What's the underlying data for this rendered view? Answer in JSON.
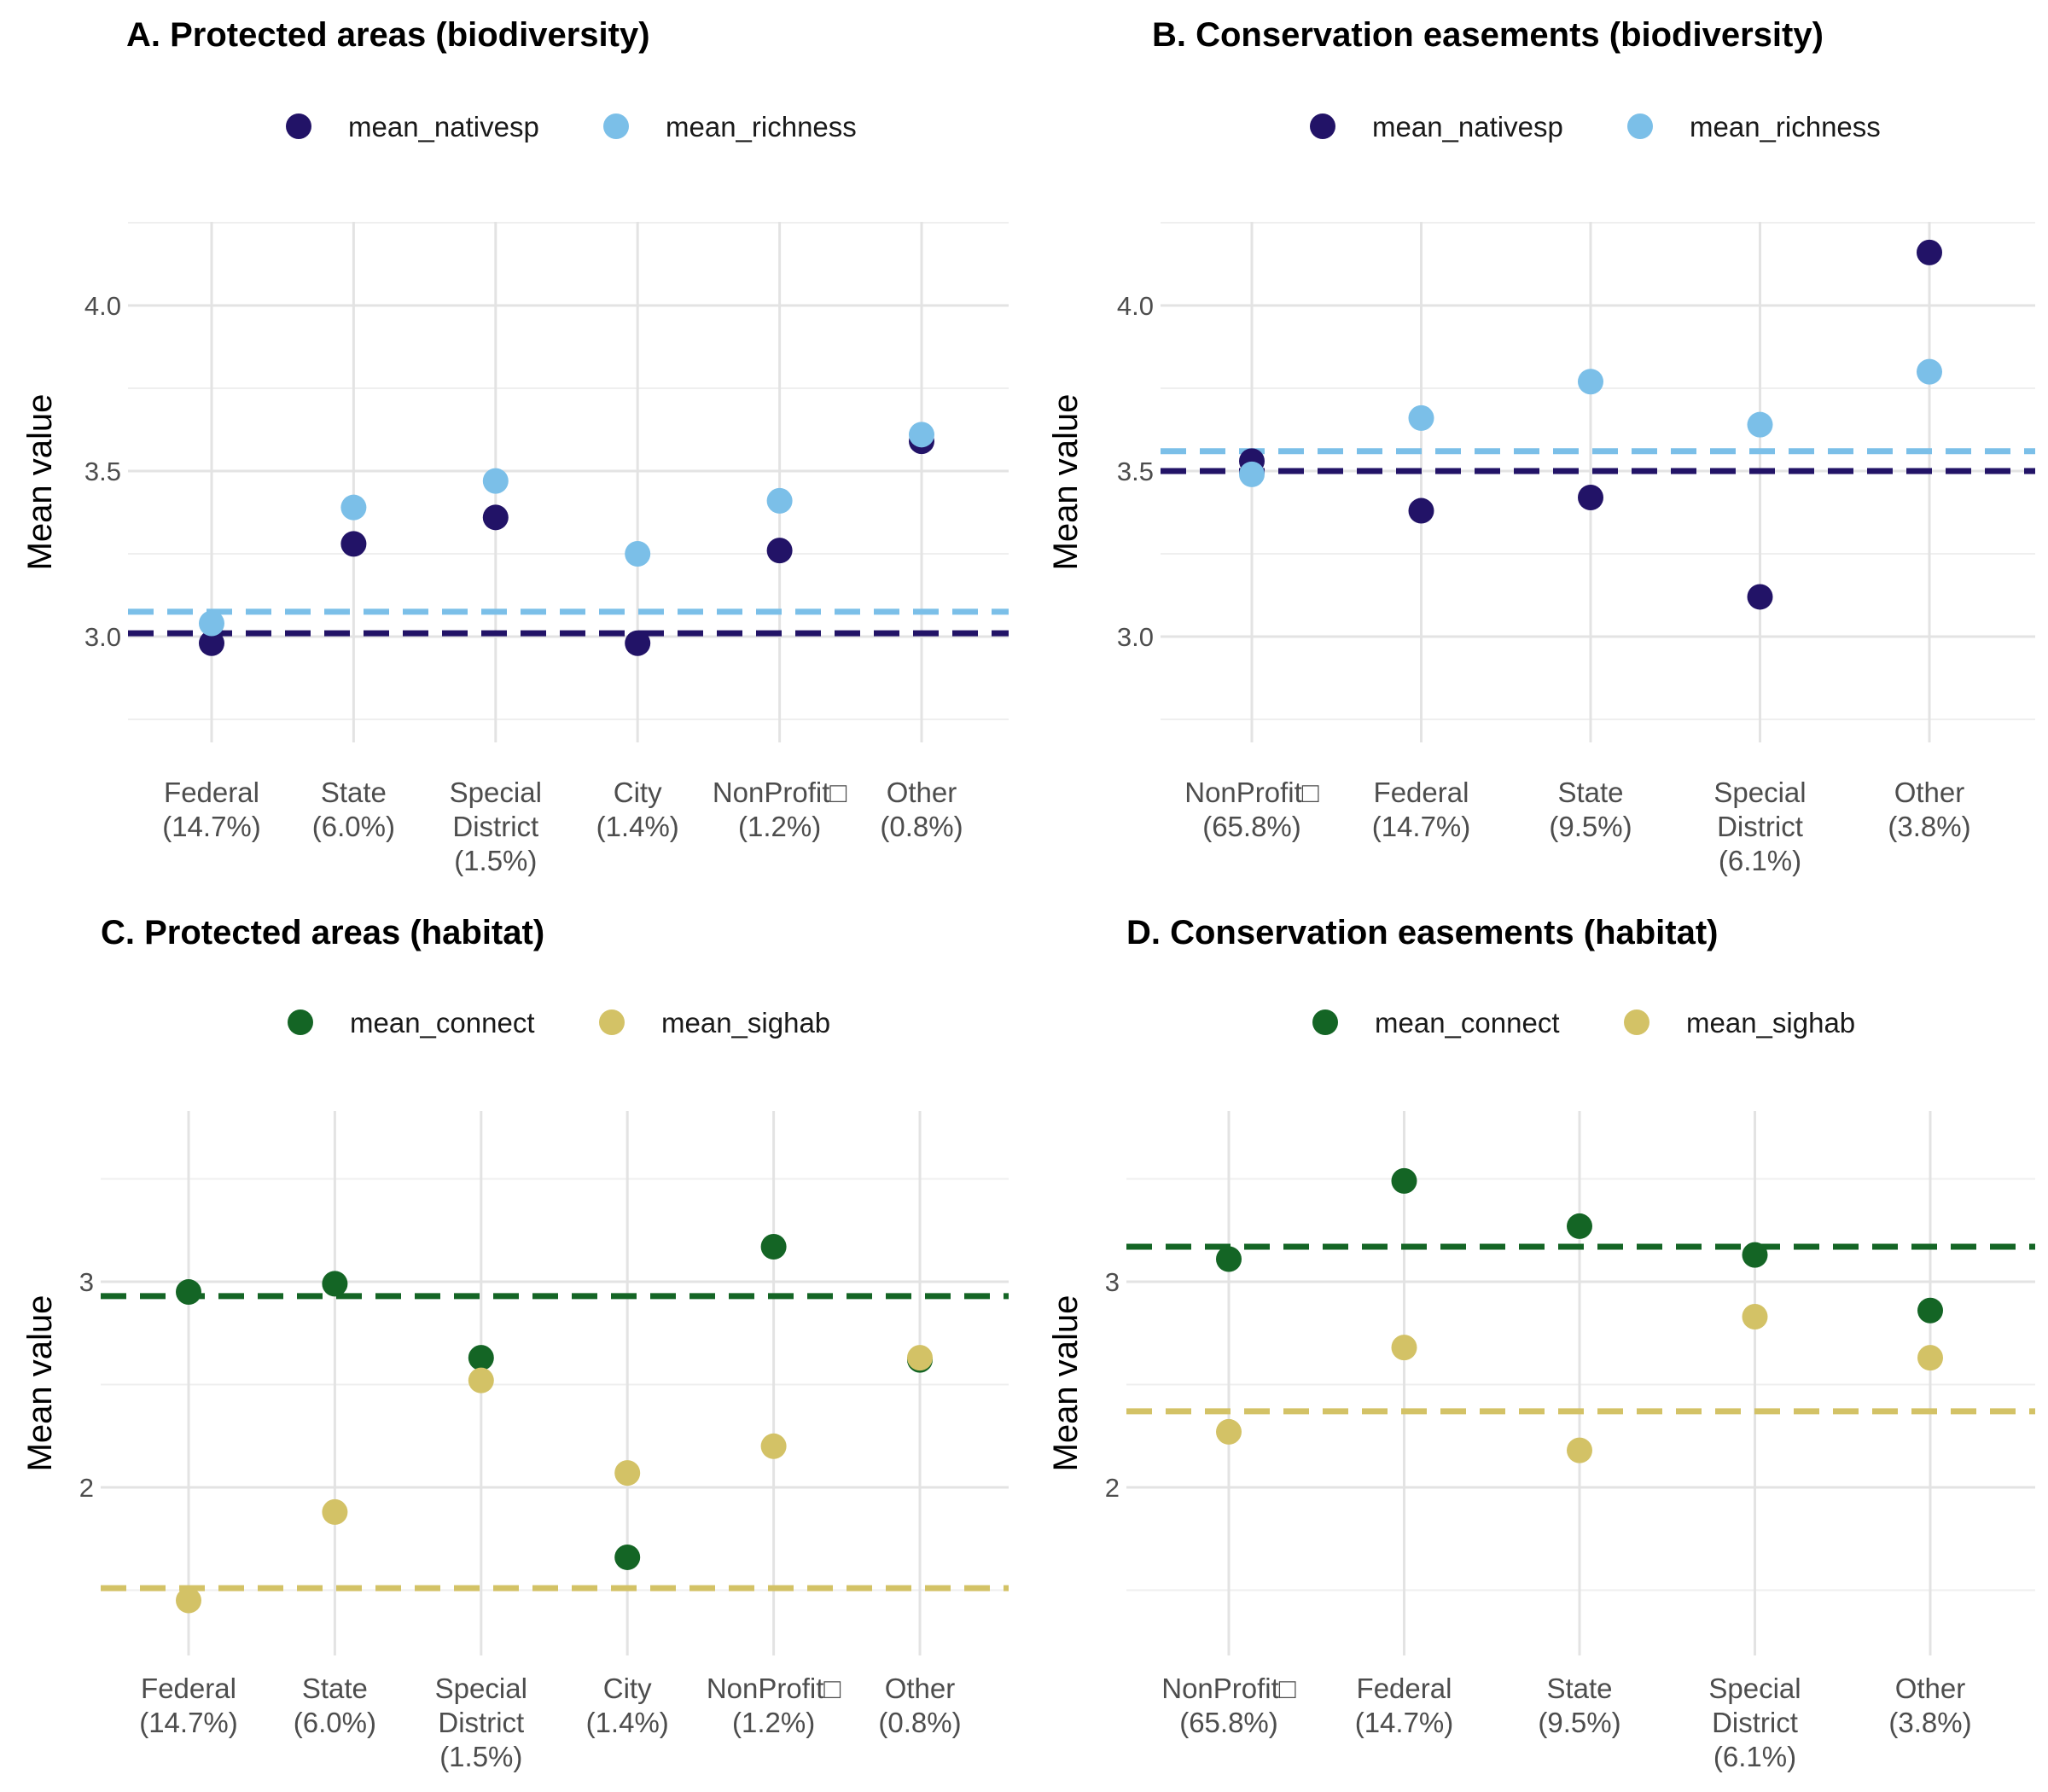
{
  "chart_data": [
    {
      "type": "scatter",
      "title": "A. Protected areas (biodiversity)",
      "ylabel": "Mean value",
      "xlabel": "",
      "legend": "top",
      "grid": true,
      "ylim": [
        2.75,
        4.25
      ],
      "yticks": [
        3.0,
        3.5,
        4.0
      ],
      "ytick_labels": [
        "3.0",
        "3.5",
        "4.0"
      ],
      "categories": [
        [
          "Federal",
          "(14.7%)"
        ],
        [
          "State",
          "(6.0%)"
        ],
        [
          "Special",
          "District",
          "(1.5%)"
        ],
        [
          "City",
          "(1.4%)"
        ],
        [
          "NonProfit□",
          "(1.2%)"
        ],
        [
          "Other",
          "(0.8%)"
        ]
      ],
      "series": [
        {
          "name": "mean_nativesp",
          "color": "#221367",
          "values": [
            2.98,
            3.28,
            3.36,
            2.98,
            3.26,
            3.59
          ],
          "reference": 3.01
        },
        {
          "name": "mean_richness",
          "color": "#7bbfe8",
          "values": [
            3.04,
            3.39,
            3.47,
            3.25,
            3.41,
            3.61
          ],
          "reference": 3.075
        }
      ]
    },
    {
      "type": "scatter",
      "title": "B. Conservation easements (biodiversity)",
      "ylabel": "Mean value",
      "xlabel": "",
      "legend": "top",
      "grid": true,
      "ylim": [
        2.75,
        4.25
      ],
      "yticks": [
        3.0,
        3.5,
        4.0
      ],
      "ytick_labels": [
        "3.0",
        "3.5",
        "4.0"
      ],
      "categories": [
        [
          "NonProfit□",
          "(65.8%)"
        ],
        [
          "Federal",
          "(14.7%)"
        ],
        [
          "State",
          "(9.5%)"
        ],
        [
          "Special",
          "District",
          "(6.1%)"
        ],
        [
          "Other",
          "(3.8%)"
        ]
      ],
      "series": [
        {
          "name": "mean_nativesp",
          "color": "#221367",
          "values": [
            3.53,
            3.38,
            3.42,
            3.12,
            4.16
          ],
          "reference": 3.5
        },
        {
          "name": "mean_richness",
          "color": "#7bbfe8",
          "values": [
            3.49,
            3.66,
            3.77,
            3.64,
            3.8
          ],
          "reference": 3.56
        }
      ]
    },
    {
      "type": "scatter",
      "title": "C. Protected areas (habitat)",
      "ylabel": "Mean value",
      "xlabel": "",
      "legend": "top",
      "grid": true,
      "ylim": [
        1.2,
        3.75
      ],
      "yticks": [
        2,
        3
      ],
      "ytick_labels": [
        "2",
        "3"
      ],
      "categories": [
        [
          "Federal",
          "(14.7%)"
        ],
        [
          "State",
          "(6.0%)"
        ],
        [
          "Special",
          "District",
          "(1.5%)"
        ],
        [
          "City",
          "(1.4%)"
        ],
        [
          "NonProfit□",
          "(1.2%)"
        ],
        [
          "Other",
          "(0.8%)"
        ]
      ],
      "series": [
        {
          "name": "mean_connect",
          "color": "#146525",
          "values": [
            2.95,
            2.99,
            2.63,
            1.66,
            3.17,
            2.62
          ],
          "reference": 2.93
        },
        {
          "name": "mean_sighab",
          "color": "#d3c266",
          "values": [
            1.45,
            1.88,
            2.52,
            2.07,
            2.2,
            2.63
          ],
          "reference": 1.51
        }
      ]
    },
    {
      "type": "scatter",
      "title": "D. Conservation easements (habitat)",
      "ylabel": "Mean value",
      "xlabel": "",
      "legend": "top",
      "grid": true,
      "ylim": [
        1.2,
        3.75
      ],
      "yticks": [
        2,
        3
      ],
      "ytick_labels": [
        "2",
        "3"
      ],
      "categories": [
        [
          "NonProfit□",
          "(65.8%)"
        ],
        [
          "Federal",
          "(14.7%)"
        ],
        [
          "State",
          "(9.5%)"
        ],
        [
          "Special",
          "District",
          "(6.1%)"
        ],
        [
          "Other",
          "(3.8%)"
        ]
      ],
      "series": [
        {
          "name": "mean_connect",
          "color": "#146525",
          "values": [
            3.11,
            3.49,
            3.27,
            3.13,
            2.86
          ],
          "reference": 3.17
        },
        {
          "name": "mean_sighab",
          "color": "#d3c266",
          "values": [
            2.27,
            2.68,
            2.18,
            2.83,
            2.63
          ],
          "reference": 2.37
        }
      ]
    }
  ]
}
